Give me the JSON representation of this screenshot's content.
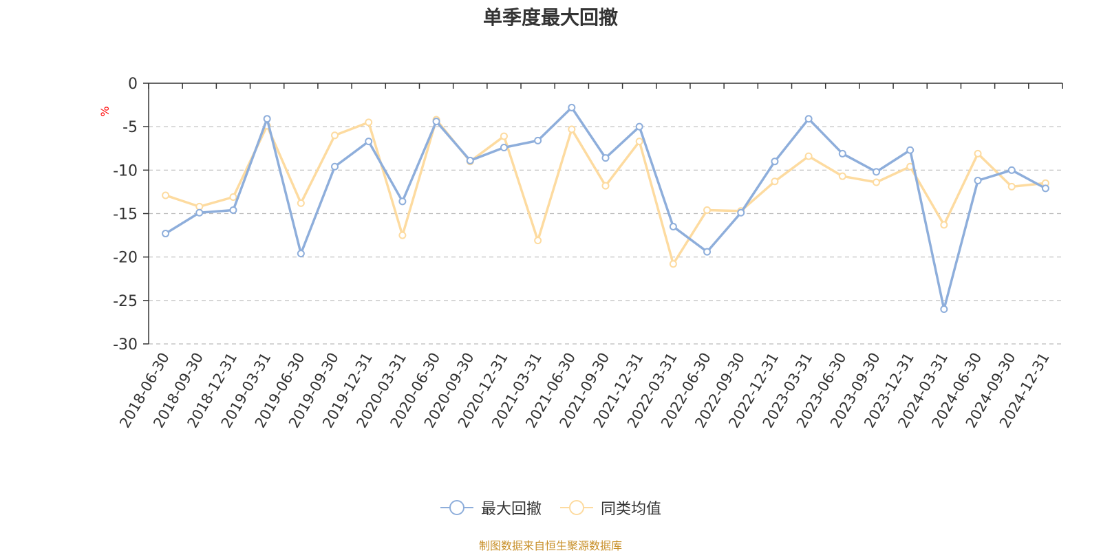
{
  "title": "单季度最大回撤",
  "source_note": "制图数据来自恒生聚源数据库",
  "colors": {
    "series1": "#8eaedb",
    "series2": "#fddba0",
    "grid": "#bbbbbb",
    "axis": "#333333",
    "unit": "#ff0000",
    "source": "#c8902a"
  },
  "legend": [
    {
      "name": "最大回撤",
      "color": "#8eaedb"
    },
    {
      "name": "同类均值",
      "color": "#fddba0"
    }
  ],
  "chart_data": {
    "type": "line",
    "title": "单季度最大回撤",
    "ylabel": "%",
    "xlabel": "",
    "ylim": [
      -30,
      0
    ],
    "yticks": [
      0,
      -5,
      -10,
      -15,
      -20,
      -25,
      -30
    ],
    "grid": true,
    "legend_position": "bottom-center",
    "categories": [
      "2018-06-30",
      "2018-09-30",
      "2018-12-31",
      "2019-03-31",
      "2019-06-30",
      "2019-09-30",
      "2019-12-31",
      "2020-03-31",
      "2020-06-30",
      "2020-09-30",
      "2020-12-31",
      "2021-03-31",
      "2021-06-30",
      "2021-09-30",
      "2021-12-31",
      "2022-03-31",
      "2022-06-30",
      "2022-09-30",
      "2022-12-31",
      "2023-03-31",
      "2023-06-30",
      "2023-09-30",
      "2023-12-31",
      "2024-03-31",
      "2024-06-30",
      "2024-09-30",
      "2024-12-31"
    ],
    "series": [
      {
        "name": "最大回撤",
        "values": [
          -17.3,
          -14.9,
          -14.6,
          -4.1,
          -19.6,
          -9.6,
          -6.7,
          -13.6,
          -4.4,
          -8.9,
          -7.4,
          -6.6,
          -2.8,
          -8.6,
          -5.0,
          -16.5,
          -19.4,
          -14.9,
          -9.0,
          -4.1,
          -8.1,
          -10.2,
          -7.7,
          -26.0,
          -11.2,
          -10.0,
          -12.1
        ]
      },
      {
        "name": "同类均值",
        "values": [
          -12.9,
          -14.2,
          -13.1,
          -4.9,
          -13.8,
          -6.0,
          -4.5,
          -17.5,
          -4.2,
          -9.0,
          -6.1,
          -18.1,
          -5.3,
          -11.8,
          -6.7,
          -20.8,
          -14.6,
          -14.7,
          -11.3,
          -8.4,
          -10.7,
          -11.4,
          -9.6,
          -16.3,
          -8.1,
          -11.9,
          -11.5
        ]
      }
    ]
  }
}
